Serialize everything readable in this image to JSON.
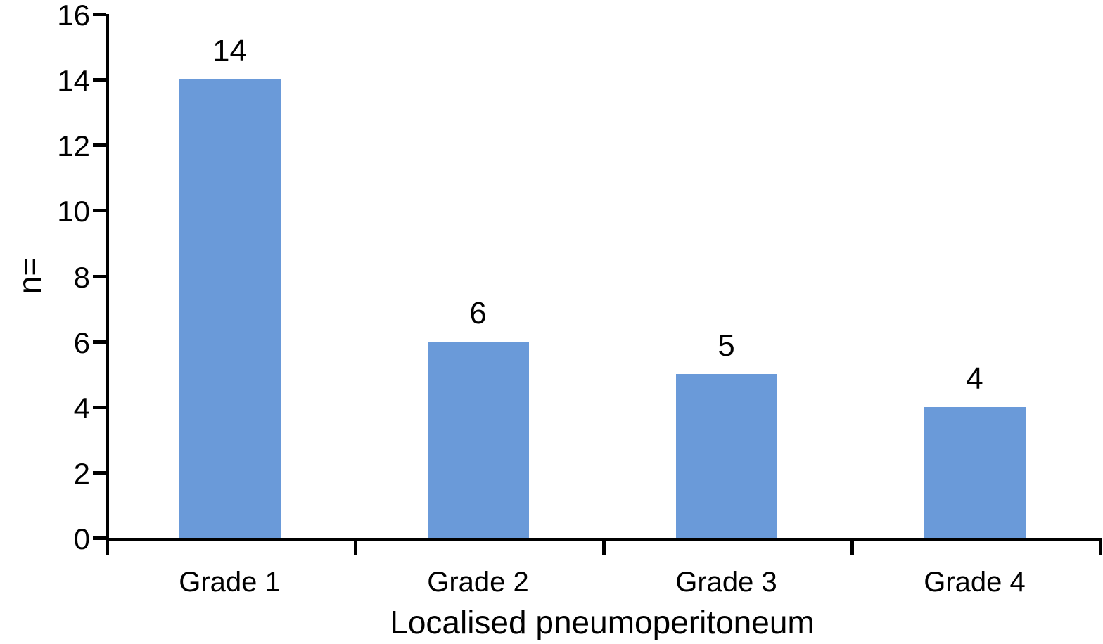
{
  "chart_data": {
    "type": "bar",
    "title": "",
    "categories": [
      "Grade 1",
      "Grade 2",
      "Grade 3",
      "Grade 4"
    ],
    "values": [
      14,
      6,
      5,
      4
    ],
    "data_labels": [
      "14",
      "6",
      "5",
      "4"
    ],
    "xlabel": "Localised pneumoperitoneum",
    "ylabel": "n=",
    "ylim": [
      0,
      16
    ],
    "yticks": [
      0,
      2,
      4,
      6,
      8,
      10,
      12,
      14,
      16
    ],
    "grid": false,
    "legend_position": "none",
    "colors": {
      "bar_fill": "#6A9AD9",
      "axis": "#000000",
      "text": "#000000",
      "background": "#ffffff"
    }
  }
}
